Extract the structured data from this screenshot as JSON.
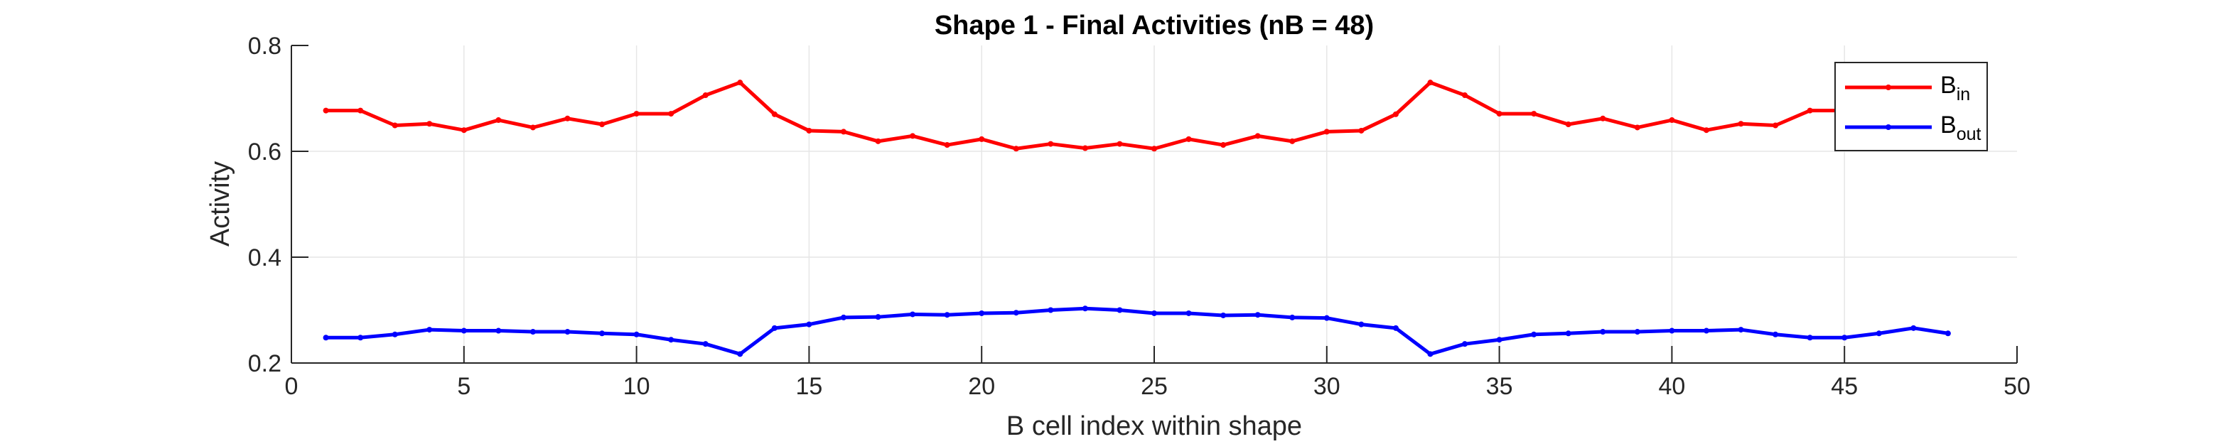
{
  "chart_data": {
    "type": "line",
    "title": "Shape 1 - Final Activities (nB = 48)",
    "xlabel": "B cell index within shape",
    "ylabel": "Activity",
    "xlim": [
      0,
      50
    ],
    "ylim": [
      0.2,
      0.8
    ],
    "xticks": [
      0,
      5,
      10,
      15,
      20,
      25,
      30,
      35,
      40,
      45,
      50
    ],
    "yticks": [
      0.2,
      0.4,
      0.6,
      0.8
    ],
    "xtick_labels": [
      "0",
      "5",
      "10",
      "15",
      "20",
      "25",
      "30",
      "35",
      "40",
      "45",
      "50"
    ],
    "ytick_labels": [
      "0.2",
      "0.4",
      "0.6",
      "0.8"
    ],
    "grid": true,
    "legend_position": "top-right",
    "x": [
      1,
      2,
      3,
      4,
      5,
      6,
      7,
      8,
      9,
      10,
      11,
      12,
      13,
      14,
      15,
      16,
      17,
      18,
      19,
      20,
      21,
      22,
      23,
      24,
      25,
      26,
      27,
      28,
      29,
      30,
      31,
      32,
      33,
      34,
      35,
      36,
      37,
      38,
      39,
      40,
      41,
      42,
      43,
      44,
      45,
      46,
      47,
      48
    ],
    "series": [
      {
        "name": "B_in",
        "legend_main": "B",
        "legend_sub": "in",
        "color": "#ff0000",
        "values": [
          0.677,
          0.677,
          0.649,
          0.652,
          0.64,
          0.659,
          0.645,
          0.662,
          0.651,
          0.671,
          0.671,
          0.706,
          0.73,
          0.67,
          0.639,
          0.637,
          0.619,
          0.629,
          0.612,
          0.623,
          0.605,
          0.614,
          0.606,
          0.614,
          0.605,
          0.623,
          0.612,
          0.629,
          0.619,
          0.637,
          0.639,
          0.67,
          0.73,
          0.706,
          0.671,
          0.671,
          0.651,
          0.662,
          0.645,
          0.659,
          0.64,
          0.652,
          0.649,
          0.677,
          0.677,
          0.679,
          0.68,
          0.683
        ]
      },
      {
        "name": "B_out",
        "legend_main": "B",
        "legend_sub": "out",
        "color": "#0000ff",
        "values": [
          0.248,
          0.248,
          0.254,
          0.263,
          0.261,
          0.261,
          0.259,
          0.259,
          0.256,
          0.254,
          0.244,
          0.236,
          0.217,
          0.266,
          0.273,
          0.286,
          0.287,
          0.292,
          0.291,
          0.294,
          0.295,
          0.3,
          0.303,
          0.3,
          0.294,
          0.294,
          0.29,
          0.291,
          0.286,
          0.285,
          0.273,
          0.266,
          0.217,
          0.236,
          0.244,
          0.254,
          0.256,
          0.259,
          0.259,
          0.261,
          0.261,
          0.263,
          0.254,
          0.248,
          0.248,
          0.256,
          0.266,
          0.256
        ]
      }
    ]
  }
}
